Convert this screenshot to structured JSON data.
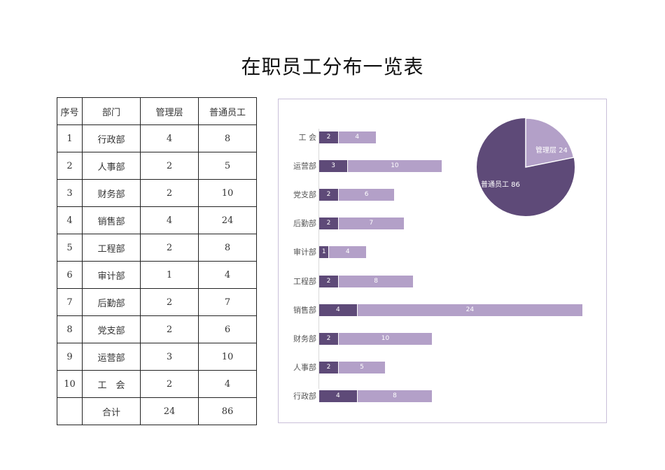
{
  "title": "在职员工分布一览表",
  "table": {
    "headers": [
      "序号",
      "部门",
      "管理层",
      "普通员工"
    ],
    "rows": [
      [
        "1",
        "行政部",
        "4",
        "8"
      ],
      [
        "2",
        "人事部",
        "2",
        "5"
      ],
      [
        "3",
        "财务部",
        "2",
        "10"
      ],
      [
        "4",
        "销售部",
        "4",
        "24"
      ],
      [
        "5",
        "工程部",
        "2",
        "8"
      ],
      [
        "6",
        "审计部",
        "1",
        "4"
      ],
      [
        "7",
        "后勤部",
        "2",
        "7"
      ],
      [
        "8",
        "党支部",
        "2",
        "6"
      ],
      [
        "9",
        "运营部",
        "3",
        "10"
      ],
      [
        "10",
        "工　会",
        "2",
        "4"
      ]
    ],
    "total": [
      "",
      "合计",
      "24",
      "86"
    ]
  },
  "colors": {
    "management": "#5e4a78",
    "staff": "#b3a0c8",
    "border": "#c9bfd9"
  },
  "chart_data": [
    {
      "type": "bar",
      "orientation": "horizontal",
      "stacked": true,
      "categories": [
        "工 会",
        "运营部",
        "党支部",
        "后勤部",
        "审计部",
        "工程部",
        "销售部",
        "财务部",
        "人事部",
        "行政部"
      ],
      "series": [
        {
          "name": "管理层",
          "values": [
            2,
            3,
            2,
            2,
            1,
            2,
            4,
            2,
            2,
            4
          ]
        },
        {
          "name": "普通员工",
          "values": [
            4,
            10,
            6,
            7,
            4,
            8,
            24,
            10,
            5,
            8
          ]
        }
      ],
      "data_labels": true,
      "grid": false,
      "legend": "none",
      "xlim": [
        0,
        28
      ]
    },
    {
      "type": "pie",
      "labels": [
        "管理层",
        "普通员工"
      ],
      "values": [
        24,
        86
      ],
      "data_labels": [
        "管理层 24",
        "普通员工  86"
      ]
    }
  ]
}
